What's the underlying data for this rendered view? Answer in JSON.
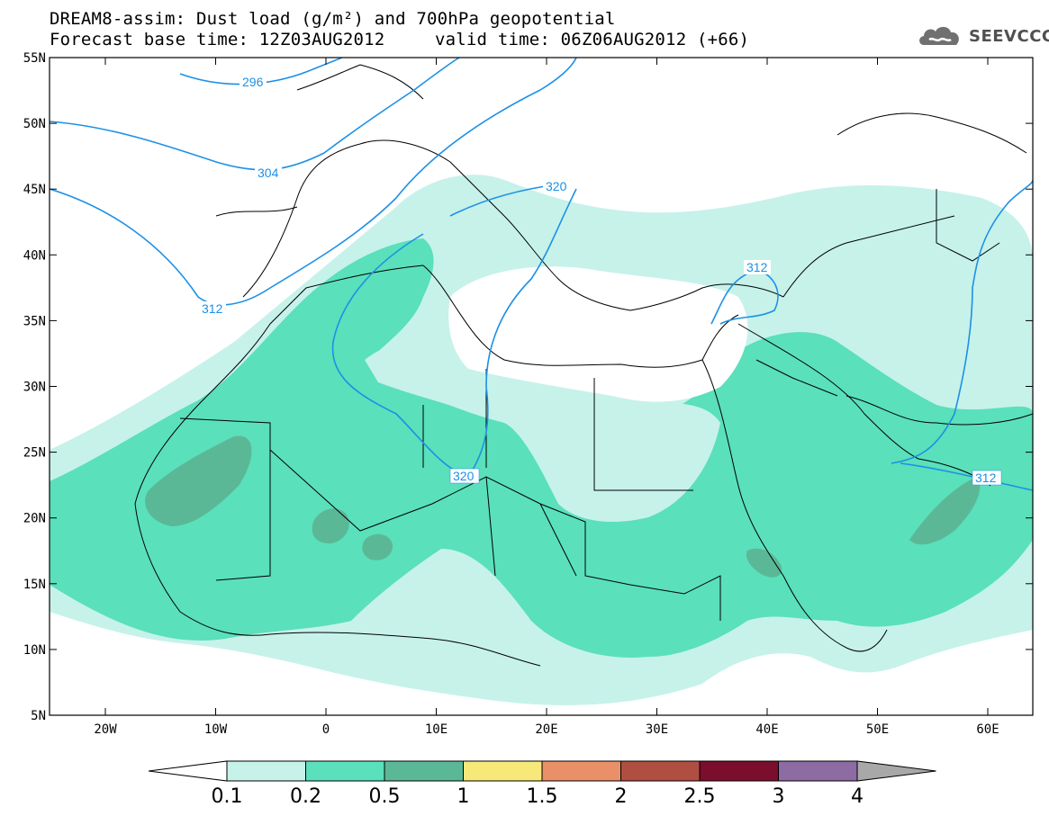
{
  "header": {
    "line1": "DREAM8-assim: Dust load (g/m²) and 700hPa geopotential",
    "base_time": "Forecast base time: 12Z03AUG2012",
    "valid_time": "valid time: 06Z06AUG2012 (+66)"
  },
  "logo": {
    "text": "SEEVCCC",
    "icon": "cloud-icon"
  },
  "axes": {
    "lat_labels": [
      "55N",
      "50N",
      "45N",
      "40N",
      "35N",
      "30N",
      "25N",
      "20N",
      "15N",
      "10N",
      "5N"
    ],
    "lon_labels": [
      "20W",
      "10W",
      "0",
      "10E",
      "20E",
      "30E",
      "40E",
      "50E",
      "60E"
    ]
  },
  "contours": [
    {
      "label": "296"
    },
    {
      "label": "304"
    },
    {
      "label": "312"
    },
    {
      "label": "320"
    },
    {
      "label": "312"
    },
    {
      "label": "320"
    },
    {
      "label": "312"
    },
    {
      "label": "312"
    }
  ],
  "colorbar": {
    "labels": [
      "0.1",
      "0.2",
      "0.5",
      "1",
      "1.5",
      "2",
      "2.5",
      "3",
      "4"
    ],
    "colors": [
      "#c6f2ea",
      "#5ae0bb",
      "#5bb896",
      "#f6e97a",
      "#ea9068",
      "#b04e42",
      "#7a0e2c",
      "#8d6ba3",
      "#a8a8a8"
    ]
  },
  "dust_colors": {
    "light": "#c6f2ea",
    "medium": "#5ae0bb",
    "dark": "#5bb896"
  },
  "contour_color": "#1d90e6"
}
